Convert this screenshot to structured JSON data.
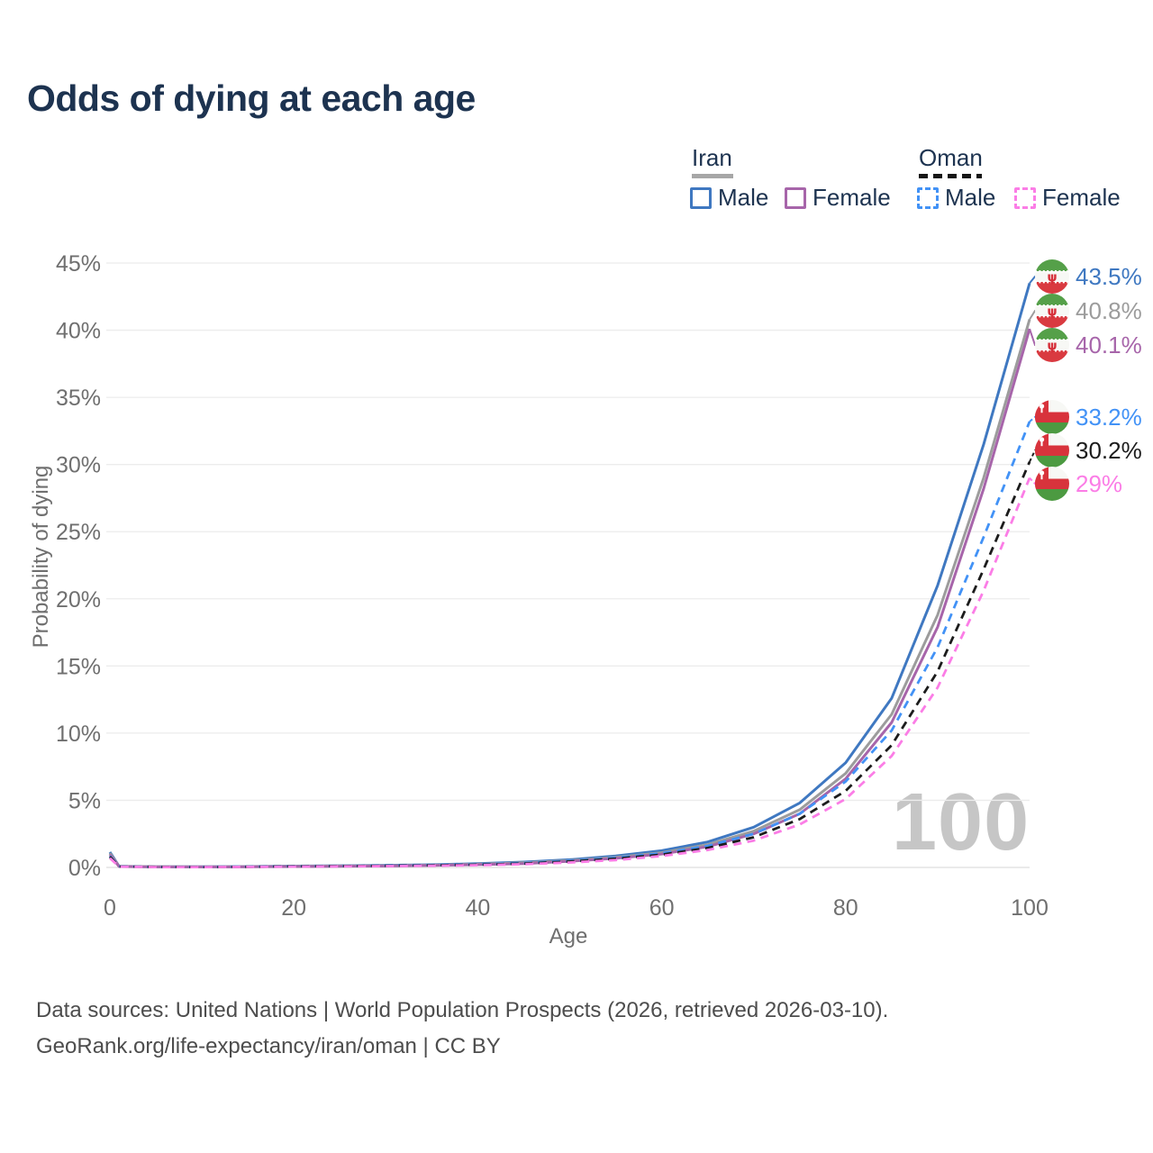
{
  "title": "Odds of dying at each age",
  "legend": {
    "iran": {
      "label": "Iran",
      "underline_color": "#a7a7a7",
      "underline_style": "solid"
    },
    "oman": {
      "label": "Oman",
      "underline_color": "#151515",
      "underline_style": "dashed"
    },
    "items": [
      {
        "label": "Male",
        "color": "#3f78c1",
        "dash": false
      },
      {
        "label": "Female",
        "color": "#a765aa",
        "dash": false
      },
      {
        "label": "Male",
        "color": "#4292f6",
        "dash": true
      },
      {
        "label": "Female",
        "color": "#fb7de6",
        "dash": true
      }
    ]
  },
  "chart_data": {
    "type": "line",
    "title": "Odds of dying at each age",
    "xlabel": "Age",
    "ylabel": "Probability of dying",
    "xlim": [
      0,
      100
    ],
    "ylim": [
      0,
      45
    ],
    "x_ticks": [
      0,
      20,
      40,
      60,
      80,
      100
    ],
    "y_ticks": [
      0,
      5,
      10,
      15,
      20,
      25,
      30,
      35,
      40,
      45
    ],
    "grid": "horizontal",
    "legend_position": "top-right",
    "watermark": "100",
    "x": [
      0,
      1,
      5,
      10,
      15,
      20,
      25,
      30,
      35,
      40,
      45,
      50,
      55,
      60,
      65,
      70,
      75,
      80,
      85,
      90,
      95,
      100
    ],
    "series": [
      {
        "name": "Iran Male",
        "country": "Iran",
        "sex": "Male",
        "color": "#3f78c1",
        "dash": false,
        "end_label": "43.5%",
        "values": [
          1.15,
          0.09,
          0.05,
          0.05,
          0.07,
          0.1,
          0.13,
          0.16,
          0.2,
          0.28,
          0.4,
          0.58,
          0.85,
          1.25,
          1.9,
          3.0,
          4.8,
          7.8,
          12.6,
          21.0,
          31.5,
          43.5
        ]
      },
      {
        "name": "Iran",
        "country": "Iran",
        "sex": "Both sexes",
        "color": "#9c9c9c",
        "dash": false,
        "end_label": "40.8%",
        "values": [
          1.05,
          0.08,
          0.05,
          0.04,
          0.06,
          0.09,
          0.11,
          0.13,
          0.17,
          0.24,
          0.35,
          0.51,
          0.75,
          1.1,
          1.7,
          2.7,
          4.3,
          7.0,
          11.4,
          18.8,
          29.0,
          40.8
        ]
      },
      {
        "name": "Iran Female",
        "country": "Iran",
        "sex": "Female",
        "color": "#a765aa",
        "dash": false,
        "end_label": "40.1%",
        "values": [
          0.95,
          0.07,
          0.04,
          0.04,
          0.05,
          0.07,
          0.09,
          0.11,
          0.15,
          0.21,
          0.29,
          0.46,
          0.68,
          1.0,
          1.55,
          2.5,
          4.0,
          6.6,
          10.8,
          17.9,
          28.2,
          40.1
        ]
      },
      {
        "name": "Oman Male",
        "country": "Oman",
        "sex": "Male",
        "color": "#4292f6",
        "dash": true,
        "end_label": "33.2%",
        "values": [
          0.85,
          0.08,
          0.04,
          0.04,
          0.06,
          0.09,
          0.11,
          0.14,
          0.18,
          0.23,
          0.33,
          0.49,
          0.72,
          1.05,
          1.6,
          2.5,
          4.0,
          6.4,
          10.2,
          16.4,
          24.6,
          33.2
        ]
      },
      {
        "name": "Oman",
        "country": "Oman",
        "sex": "Both sexes",
        "color": "#1c1c1c",
        "dash": true,
        "end_label": "30.2%",
        "values": [
          0.8,
          0.07,
          0.04,
          0.03,
          0.05,
          0.08,
          0.1,
          0.12,
          0.16,
          0.2,
          0.29,
          0.44,
          0.65,
          0.95,
          1.45,
          2.25,
          3.6,
          5.7,
          9.1,
          14.6,
          22.2,
          30.2
        ]
      },
      {
        "name": "Oman Female",
        "country": "Oman",
        "sex": "Female",
        "color": "#fb7de6",
        "dash": true,
        "end_label": "29%",
        "values": [
          0.7,
          0.06,
          0.03,
          0.03,
          0.04,
          0.06,
          0.08,
          0.1,
          0.13,
          0.17,
          0.24,
          0.37,
          0.55,
          0.85,
          1.3,
          2.0,
          3.2,
          5.1,
          8.3,
          13.4,
          20.6,
          29.0
        ]
      }
    ]
  },
  "source": {
    "line1": "Data sources: United Nations | World Population Prospects (2026, retrieved 2026-03-10).",
    "line2": "GeoRank.org/life-expectancy/iran/oman | CC BY"
  }
}
